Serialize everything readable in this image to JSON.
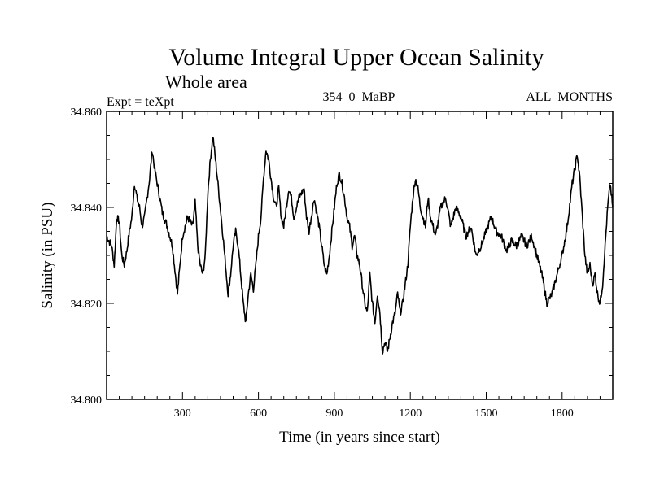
{
  "chart_data": {
    "type": "line",
    "title": "Volume Integral Upper Ocean Salinity",
    "subtitle": "Whole area",
    "header_left": "Expt = teXpt",
    "header_center": "354_0_MaBP",
    "header_right": "ALL_MONTHS",
    "xlabel": "Time (in years since start)",
    "ylabel": "Salinity (in PSU)",
    "xlim": [
      0,
      2000
    ],
    "ylim": [
      34.8,
      34.86
    ],
    "xticks": [
      300,
      600,
      900,
      1200,
      1500,
      1800
    ],
    "xtick_labels": [
      "300",
      "600",
      "900",
      "1200",
      "1500",
      "1800"
    ],
    "yticks": [
      34.8,
      34.82,
      34.84,
      34.86
    ],
    "ytick_labels": [
      "34.800",
      "34.820",
      "34.840",
      "34.860"
    ],
    "grid": false,
    "series": [
      {
        "x": [
          0,
          20,
          30,
          40,
          50,
          60,
          70,
          80,
          90,
          100,
          110,
          120,
          130,
          140,
          150,
          160,
          170,
          180,
          190,
          200,
          210,
          220,
          240,
          260,
          270,
          280,
          290,
          300,
          310,
          320,
          340,
          350,
          360,
          370,
          380,
          390,
          400,
          410,
          420,
          440,
          460,
          470,
          480,
          490,
          500,
          510,
          520,
          530,
          540,
          550,
          560,
          570,
          580,
          590,
          600,
          610,
          620,
          630,
          640,
          650,
          660,
          670,
          680,
          690,
          700,
          710,
          720,
          730,
          740,
          760,
          780,
          790,
          800,
          820,
          840,
          850,
          860,
          870,
          880,
          890,
          900,
          910,
          920,
          930,
          940,
          950,
          960,
          970,
          980,
          990,
          1000,
          1010,
          1020,
          1030,
          1040,
          1050,
          1060,
          1070,
          1080,
          1090,
          1100,
          1110,
          1120,
          1130,
          1140,
          1150,
          1160,
          1170,
          1180,
          1190,
          1200,
          1210,
          1220,
          1230,
          1240,
          1250,
          1260,
          1270,
          1280,
          1290,
          1300,
          1320,
          1340,
          1360,
          1380,
          1400,
          1420,
          1440,
          1460,
          1480,
          1500,
          1520,
          1540,
          1560,
          1580,
          1600,
          1620,
          1640,
          1660,
          1680,
          1700,
          1720,
          1740,
          1760,
          1780,
          1800,
          1820,
          1840,
          1860,
          1870,
          1880,
          1890,
          1900,
          1910,
          1920,
          1930,
          1940,
          1950,
          1960,
          1970,
          1980,
          1990,
          2000
        ],
        "values": [
          34.834,
          34.832,
          34.828,
          34.838,
          34.837,
          34.83,
          34.828,
          34.831,
          34.835,
          34.838,
          34.845,
          34.842,
          34.84,
          34.836,
          34.838,
          34.842,
          34.846,
          34.852,
          34.848,
          34.845,
          34.842,
          34.839,
          34.836,
          34.832,
          34.827,
          34.822,
          34.828,
          34.834,
          34.836,
          34.838,
          34.836,
          34.841,
          34.832,
          34.828,
          34.826,
          34.83,
          34.843,
          34.85,
          34.855,
          34.845,
          34.834,
          34.828,
          34.822,
          34.826,
          34.832,
          34.835,
          34.832,
          34.826,
          34.82,
          34.816,
          34.822,
          34.826,
          34.823,
          34.828,
          34.834,
          34.838,
          34.846,
          34.852,
          34.85,
          34.846,
          34.842,
          34.84,
          34.844,
          34.838,
          34.836,
          34.84,
          34.844,
          34.842,
          34.838,
          34.842,
          34.844,
          34.838,
          34.835,
          34.842,
          34.836,
          34.832,
          34.828,
          34.826,
          34.83,
          34.835,
          34.84,
          34.845,
          34.847,
          34.845,
          34.842,
          34.838,
          34.836,
          34.832,
          34.834,
          34.83,
          34.828,
          34.824,
          34.82,
          34.818,
          34.826,
          34.82,
          34.816,
          34.822,
          34.818,
          34.81,
          34.812,
          34.81,
          34.813,
          34.816,
          34.818,
          34.822,
          34.818,
          34.82,
          34.824,
          34.828,
          34.836,
          34.842,
          34.846,
          34.844,
          34.84,
          34.838,
          34.836,
          34.842,
          34.838,
          34.836,
          34.834,
          34.84,
          34.842,
          34.836,
          34.84,
          34.838,
          34.834,
          34.836,
          34.83,
          34.832,
          34.835,
          34.838,
          34.835,
          34.834,
          34.831,
          34.833,
          34.832,
          34.834,
          34.832,
          34.834,
          34.83,
          34.826,
          34.82,
          34.822,
          34.826,
          34.83,
          34.836,
          34.845,
          34.851,
          34.846,
          34.838,
          34.83,
          34.826,
          34.828,
          34.824,
          34.826,
          34.822,
          34.82,
          34.824,
          34.832,
          34.84,
          34.845,
          34.84
        ]
      }
    ]
  }
}
